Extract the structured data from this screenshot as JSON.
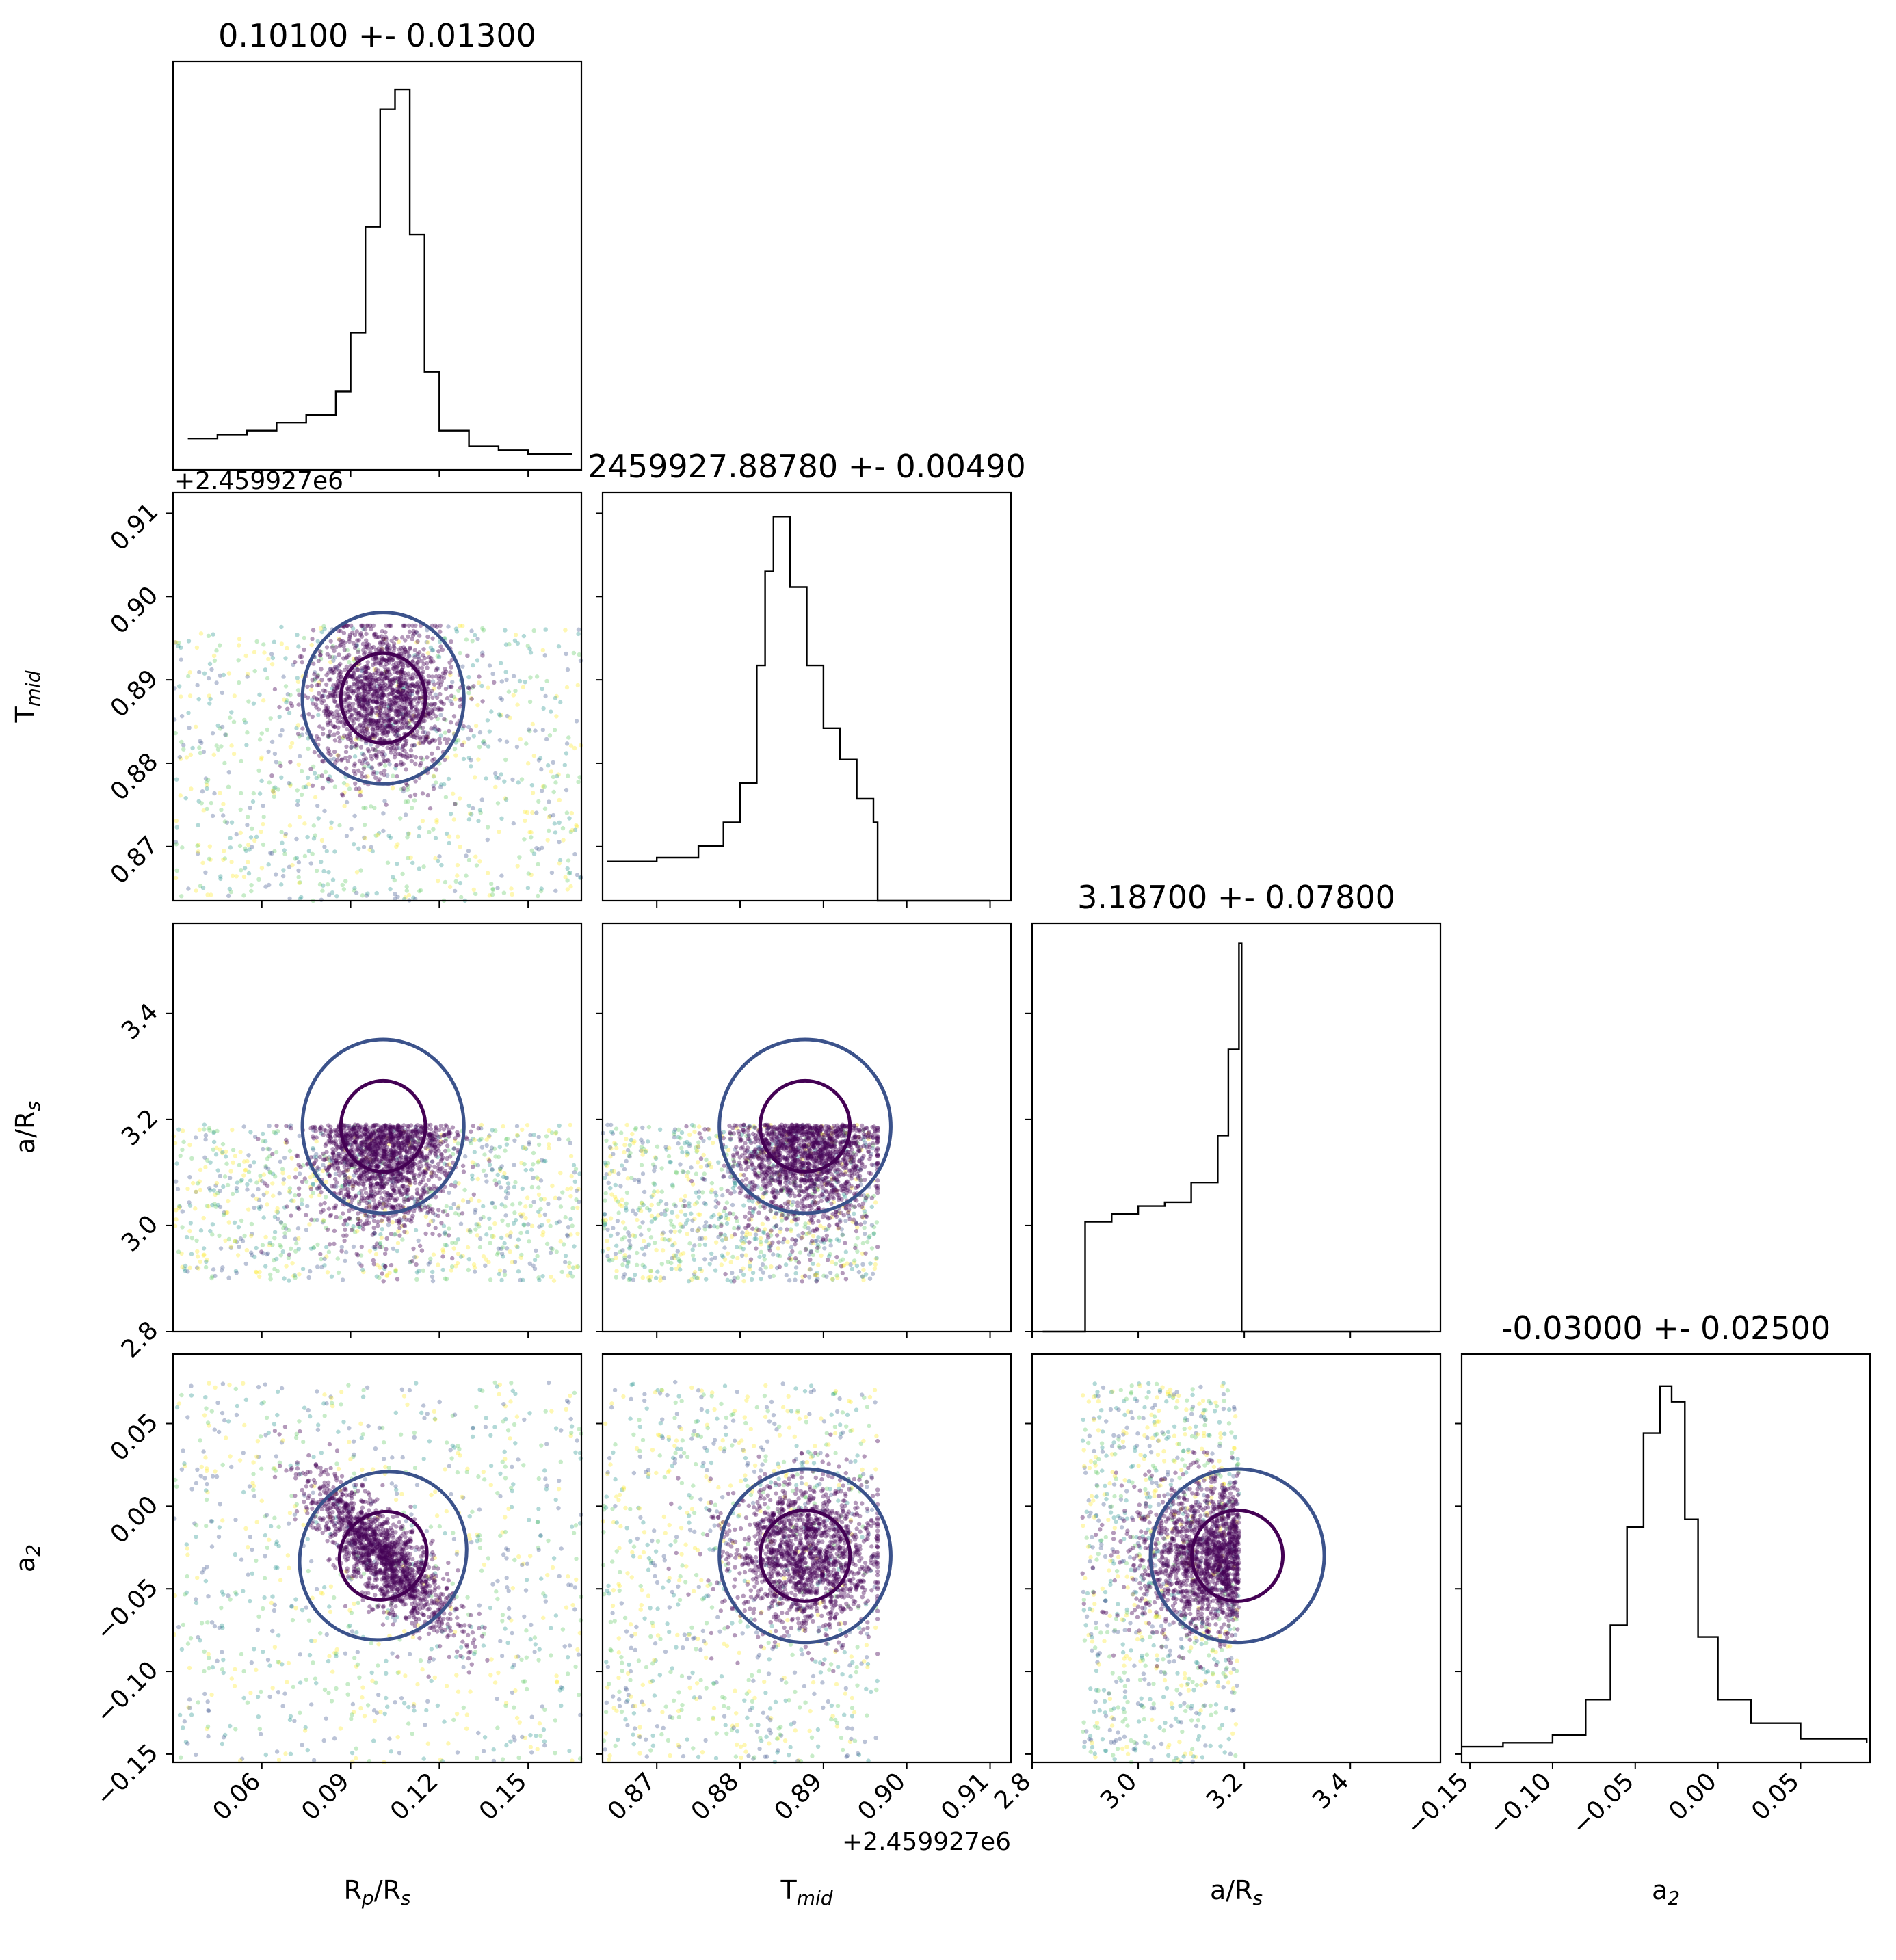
{
  "chart_data": {
    "type": "scatter",
    "kind": "corner-plot",
    "parameters": [
      {
        "key": "rp",
        "label": "R",
        "label_sub": "p",
        "label_suffix": "/R",
        "label_suffix_sub": "s",
        "range": [
          0.03,
          0.168
        ],
        "ticks": [
          "0.06",
          "0.09",
          "0.12",
          "0.15"
        ],
        "tick_values": [
          0.06,
          0.09,
          0.12,
          0.15
        ],
        "title": "0.10100 +- 0.01300",
        "median": 0.101,
        "sigma": 0.013
      },
      {
        "key": "tmid",
        "label": "T",
        "label_sub": "mid",
        "label_suffix": "",
        "label_suffix_sub": "",
        "range": [
          0.8635,
          0.9125
        ],
        "ticks": [
          "0.87",
          "0.88",
          "0.89",
          "0.90",
          "0.91"
        ],
        "tick_values": [
          0.87,
          0.88,
          0.89,
          0.9,
          0.91
        ],
        "offset": "+2.459927e6",
        "title": "2459927.88780 +- 0.00490",
        "median": 0.8878,
        "sigma": 0.0049
      },
      {
        "key": "ars",
        "label": "a/R",
        "label_sub": "s",
        "label_suffix": "",
        "label_suffix_sub": "",
        "range": [
          2.8,
          3.57
        ],
        "ticks": [
          "2.8",
          "3.0",
          "3.2",
          "3.4"
        ],
        "tick_values": [
          2.8,
          3.0,
          3.2,
          3.4
        ],
        "title": "3.18700 +- 0.07800",
        "median": 3.187,
        "sigma": 0.078
      },
      {
        "key": "a2",
        "label": "a",
        "label_sub": "2",
        "label_suffix": "",
        "label_suffix_sub": "",
        "range": [
          -0.155,
          0.092
        ],
        "ticks": [
          "−0.15",
          "−0.10",
          "−0.05",
          "0.00",
          "0.05"
        ],
        "tick_values": [
          -0.15,
          -0.1,
          -0.05,
          0.0,
          0.05
        ],
        "title": "-0.03000 +- 0.02500",
        "median": -0.03,
        "sigma": 0.025
      }
    ],
    "histograms": {
      "rp": {
        "x": [
          0.035,
          0.045,
          0.055,
          0.065,
          0.075,
          0.085,
          0.09,
          0.095,
          0.1,
          0.105,
          0.11,
          0.115,
          0.12,
          0.13,
          0.14,
          0.15,
          0.165
        ],
        "y": [
          0.08,
          0.09,
          0.1,
          0.12,
          0.14,
          0.2,
          0.35,
          0.62,
          0.92,
          0.97,
          0.6,
          0.25,
          0.1,
          0.06,
          0.05,
          0.04,
          0.04
        ]
      },
      "tmid": {
        "x": [
          0.864,
          0.87,
          0.875,
          0.878,
          0.88,
          0.882,
          0.883,
          0.884,
          0.886,
          0.888,
          0.89,
          0.892,
          0.894,
          0.896,
          0.8965,
          0.91
        ],
        "y": [
          0.1,
          0.11,
          0.14,
          0.2,
          0.3,
          0.6,
          0.84,
          0.98,
          0.8,
          0.6,
          0.44,
          0.36,
          0.26,
          0.2,
          0.0,
          0.0
        ]
      },
      "ars": {
        "x": [
          2.82,
          2.88,
          2.9,
          2.95,
          3.0,
          3.05,
          3.1,
          3.15,
          3.17,
          3.19,
          3.195,
          3.3,
          3.55
        ],
        "y": [
          0.0,
          0.0,
          0.28,
          0.3,
          0.32,
          0.33,
          0.38,
          0.5,
          0.72,
          0.99,
          0.0,
          0.0,
          0.0
        ]
      },
      "a2": {
        "x": [
          -0.155,
          -0.13,
          -0.1,
          -0.08,
          -0.065,
          -0.055,
          -0.045,
          -0.035,
          -0.028,
          -0.02,
          -0.012,
          0.0,
          0.02,
          0.05,
          0.09
        ],
        "y": [
          0.04,
          0.05,
          0.07,
          0.16,
          0.35,
          0.6,
          0.84,
          0.96,
          0.92,
          0.62,
          0.32,
          0.16,
          0.1,
          0.06,
          0.05
        ]
      }
    },
    "scatter_extent": {
      "rp": [
        0.03,
        0.168
      ],
      "tmid": [
        0.8635,
        0.8965
      ],
      "ars": [
        2.895,
        3.19
      ],
      "a2": [
        -0.155,
        0.075
      ]
    },
    "point_colormap": [
      "#440154",
      "#3b528b",
      "#21918c",
      "#5ec962",
      "#fde725"
    ],
    "contour_colors": [
      "#440154",
      "#3b528b",
      "#fde725"
    ],
    "grid": false
  }
}
